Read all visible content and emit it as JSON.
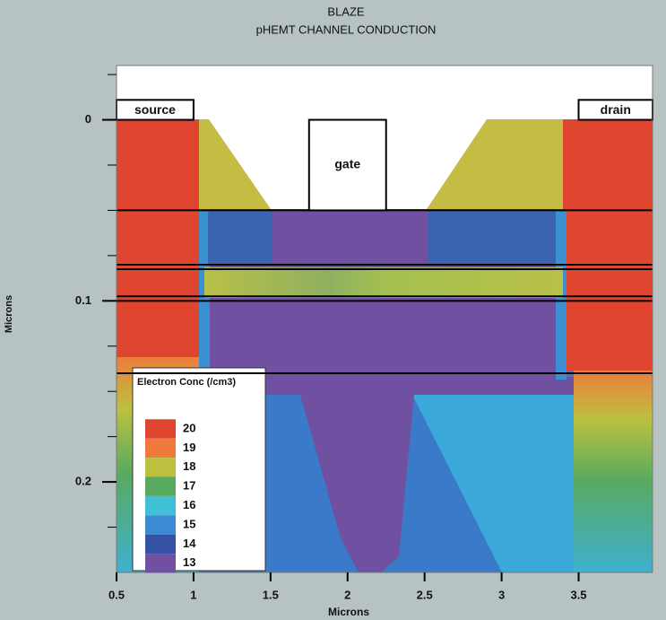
{
  "chart_data": {
    "type": "contour",
    "title": "BLAZE",
    "subtitle": "pHEMT CHANNEL CONDUCTION",
    "x_label": "Microns",
    "y_label": "Microns",
    "xlim": [
      0.5,
      3.98
    ],
    "ylim": [
      -0.03,
      0.25
    ],
    "y_inverted": true,
    "xticks": [
      0.5,
      1,
      1.5,
      2,
      2.5,
      3,
      3.5
    ],
    "yticks": [
      0,
      0.1,
      0.2
    ],
    "y_minor_ticks": [
      -0.025,
      0.025,
      0.05,
      0.075,
      0.125,
      0.15,
      0.175,
      0.225
    ],
    "layer_boundaries": [
      0.05,
      0.08,
      0.0825,
      0.0975,
      0.1,
      0.14
    ],
    "electrodes": [
      {
        "name": "source",
        "x": [
          0.5,
          1.0
        ],
        "y": [
          -0.011,
          0
        ]
      },
      {
        "name": "gate",
        "x": [
          1.75,
          2.25
        ],
        "y": [
          0,
          0.05
        ]
      },
      {
        "name": "drain",
        "x": [
          3.5,
          3.98
        ],
        "y": [
          -0.011,
          0
        ]
      }
    ],
    "legend": {
      "title": "Electron Conc (/cm3)",
      "levels": [
        20,
        19,
        18,
        17,
        16,
        15,
        14,
        13
      ],
      "colors": [
        "#e04530",
        "#ef7a3c",
        "#bcc040",
        "#58aa60",
        "#3fc0d6",
        "#3a8ad4",
        "#3552a4",
        "#7050a0"
      ]
    }
  }
}
